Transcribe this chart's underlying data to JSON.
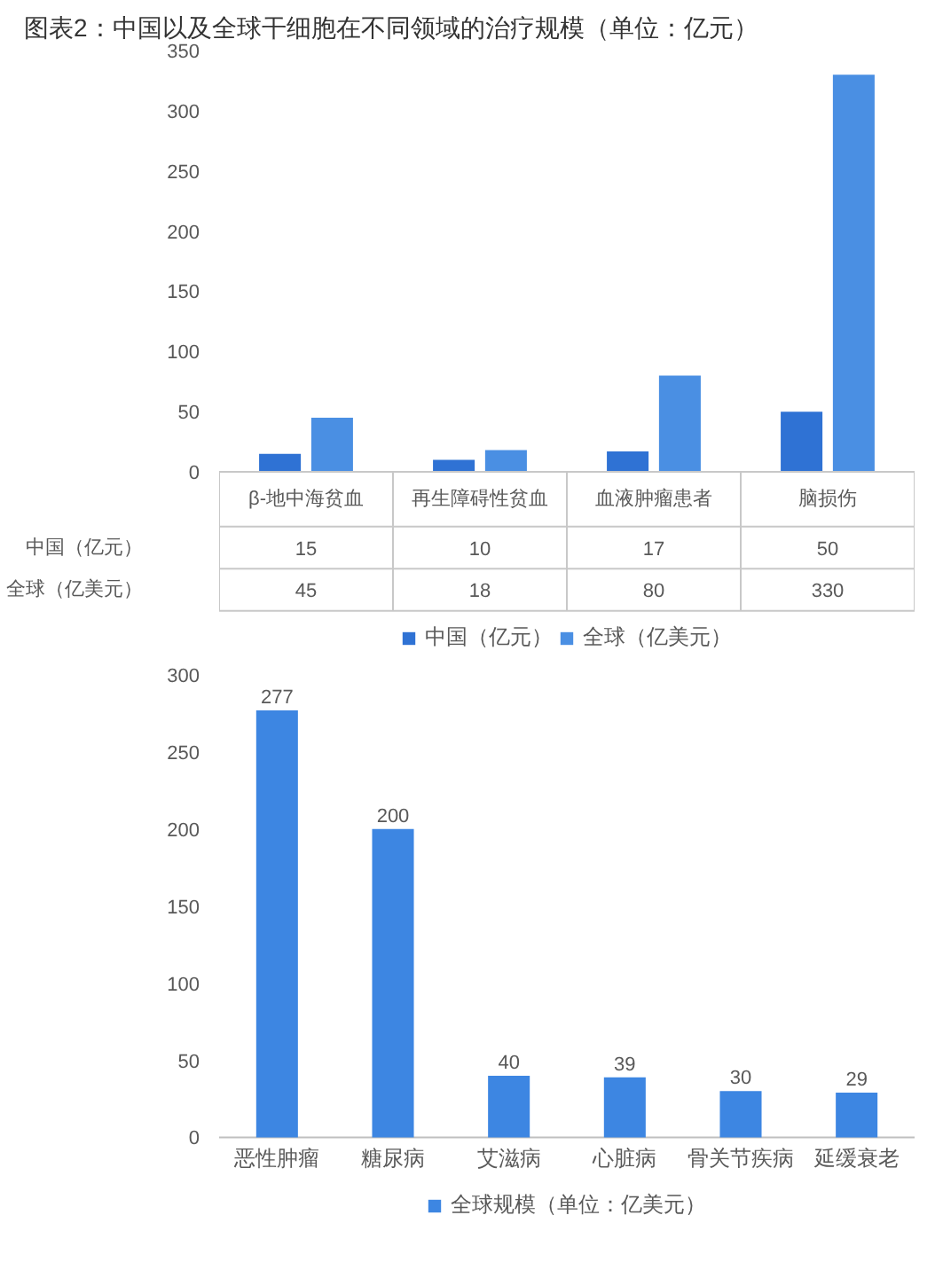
{
  "chart_data": [
    {
      "type": "bar",
      "title": "图表2：中国以及全球干细胞在不同领域的治疗规模（单位：亿元）",
      "categories": [
        "β-地中海贫血",
        "再生障碍性贫血",
        "血液肿瘤患者",
        "脑损伤"
      ],
      "series": [
        {
          "name": "中国（亿元）",
          "color": "#2f72d4",
          "values": [
            15,
            10,
            17,
            50
          ]
        },
        {
          "name": "全球（亿美元）",
          "color": "#4a8fe3",
          "values": [
            45,
            18,
            80,
            330
          ]
        }
      ],
      "ylim": [
        0,
        350
      ],
      "yticks": [
        0,
        50,
        100,
        150,
        200,
        250,
        300,
        350
      ],
      "data_labels": true,
      "legend": "bottom"
    },
    {
      "type": "bar",
      "categories": [
        "恶性肿瘤",
        "糖尿病",
        "艾滋病",
        "心脏病",
        "骨关节疾病",
        "延缓衰老"
      ],
      "series": [
        {
          "name": "全球规模（单位：亿美元）",
          "color": "#3d86e2",
          "values": [
            277,
            200,
            40,
            39,
            30,
            29
          ]
        }
      ],
      "ylim": [
        0,
        300
      ],
      "yticks": [
        0,
        50,
        100,
        150,
        200,
        250,
        300
      ],
      "data_labels": true,
      "legend": "bottom"
    }
  ]
}
